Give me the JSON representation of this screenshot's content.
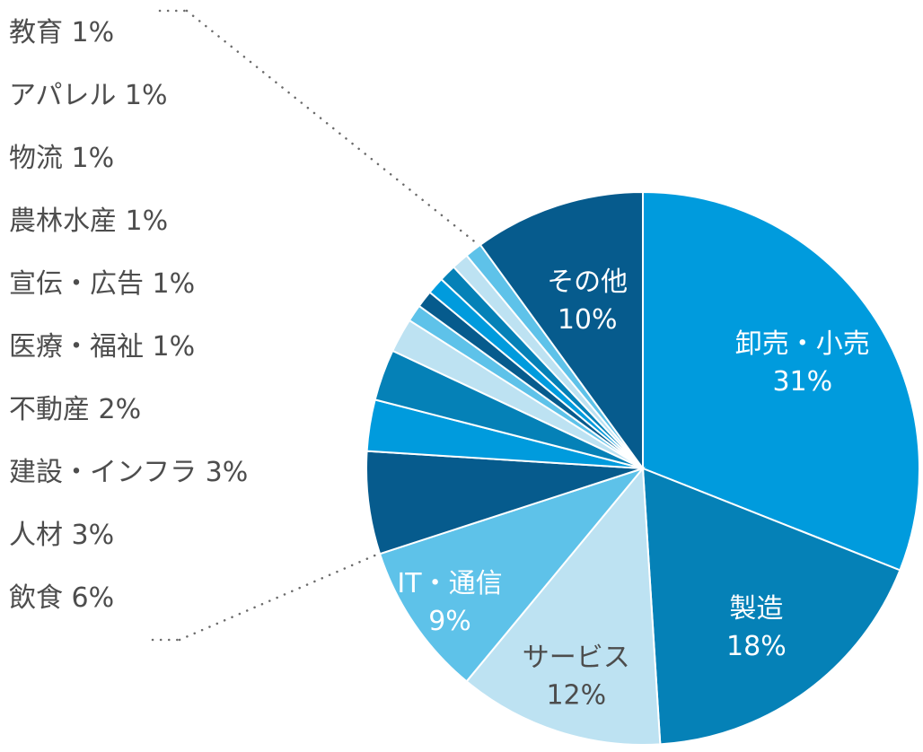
{
  "chart_data": {
    "type": "pie",
    "title": "",
    "slices": [
      {
        "label": "卸売・小売",
        "value": 31,
        "display": "31%",
        "color": "#009bdd",
        "text_color": "#ffffff"
      },
      {
        "label": "製造",
        "value": 18,
        "display": "18%",
        "color": "#0581b7",
        "text_color": "#ffffff"
      },
      {
        "label": "サービス",
        "value": 12,
        "display": "12%",
        "color": "#bde2f2",
        "text_color": "#4d4d4d"
      },
      {
        "label": "IT・通信",
        "value": 9,
        "display": "9%",
        "color": "#5ec2e9",
        "text_color": "#ffffff"
      },
      {
        "label": "飲食",
        "value": 6,
        "display": "6%",
        "color": "#065b8d",
        "text_color": "#4d4d4d"
      },
      {
        "label": "人材",
        "value": 3,
        "display": "3%",
        "color": "#009bdd",
        "text_color": "#4d4d4d"
      },
      {
        "label": "建設・インフラ",
        "value": 3,
        "display": "3%",
        "color": "#0581b7",
        "text_color": "#4d4d4d"
      },
      {
        "label": "不動産",
        "value": 2,
        "display": "2%",
        "color": "#bde2f2",
        "text_color": "#4d4d4d"
      },
      {
        "label": "医療・福祉",
        "value": 1,
        "display": "1%",
        "color": "#5ec2e9",
        "text_color": "#4d4d4d"
      },
      {
        "label": "宣伝・広告",
        "value": 1,
        "display": "1%",
        "color": "#065b8d",
        "text_color": "#4d4d4d"
      },
      {
        "label": "農林水産",
        "value": 1,
        "display": "1%",
        "color": "#009bdd",
        "text_color": "#4d4d4d"
      },
      {
        "label": "物流",
        "value": 1,
        "display": "1%",
        "color": "#0581b7",
        "text_color": "#4d4d4d"
      },
      {
        "label": "アパレル",
        "value": 1,
        "display": "1%",
        "color": "#bde2f2",
        "text_color": "#4d4d4d"
      },
      {
        "label": "教育",
        "value": 1,
        "display": "1%",
        "color": "#5ec2e9",
        "text_color": "#4d4d4d"
      },
      {
        "label": "その他",
        "value": 10,
        "display": "10%",
        "color": "#065b8d",
        "text_color": "#ffffff"
      }
    ],
    "labeled_inside": [
      "卸売・小売",
      "製造",
      "サービス",
      "IT・通信",
      "その他"
    ],
    "legend_order_top_to_bottom": [
      "教育",
      "アパレル",
      "物流",
      "農林水産",
      "宣伝・広告",
      "医療・福祉",
      "不動産",
      "建設・インフラ",
      "人材",
      "飲食"
    ],
    "legend_placement": "left",
    "connector_style": "dotted"
  }
}
